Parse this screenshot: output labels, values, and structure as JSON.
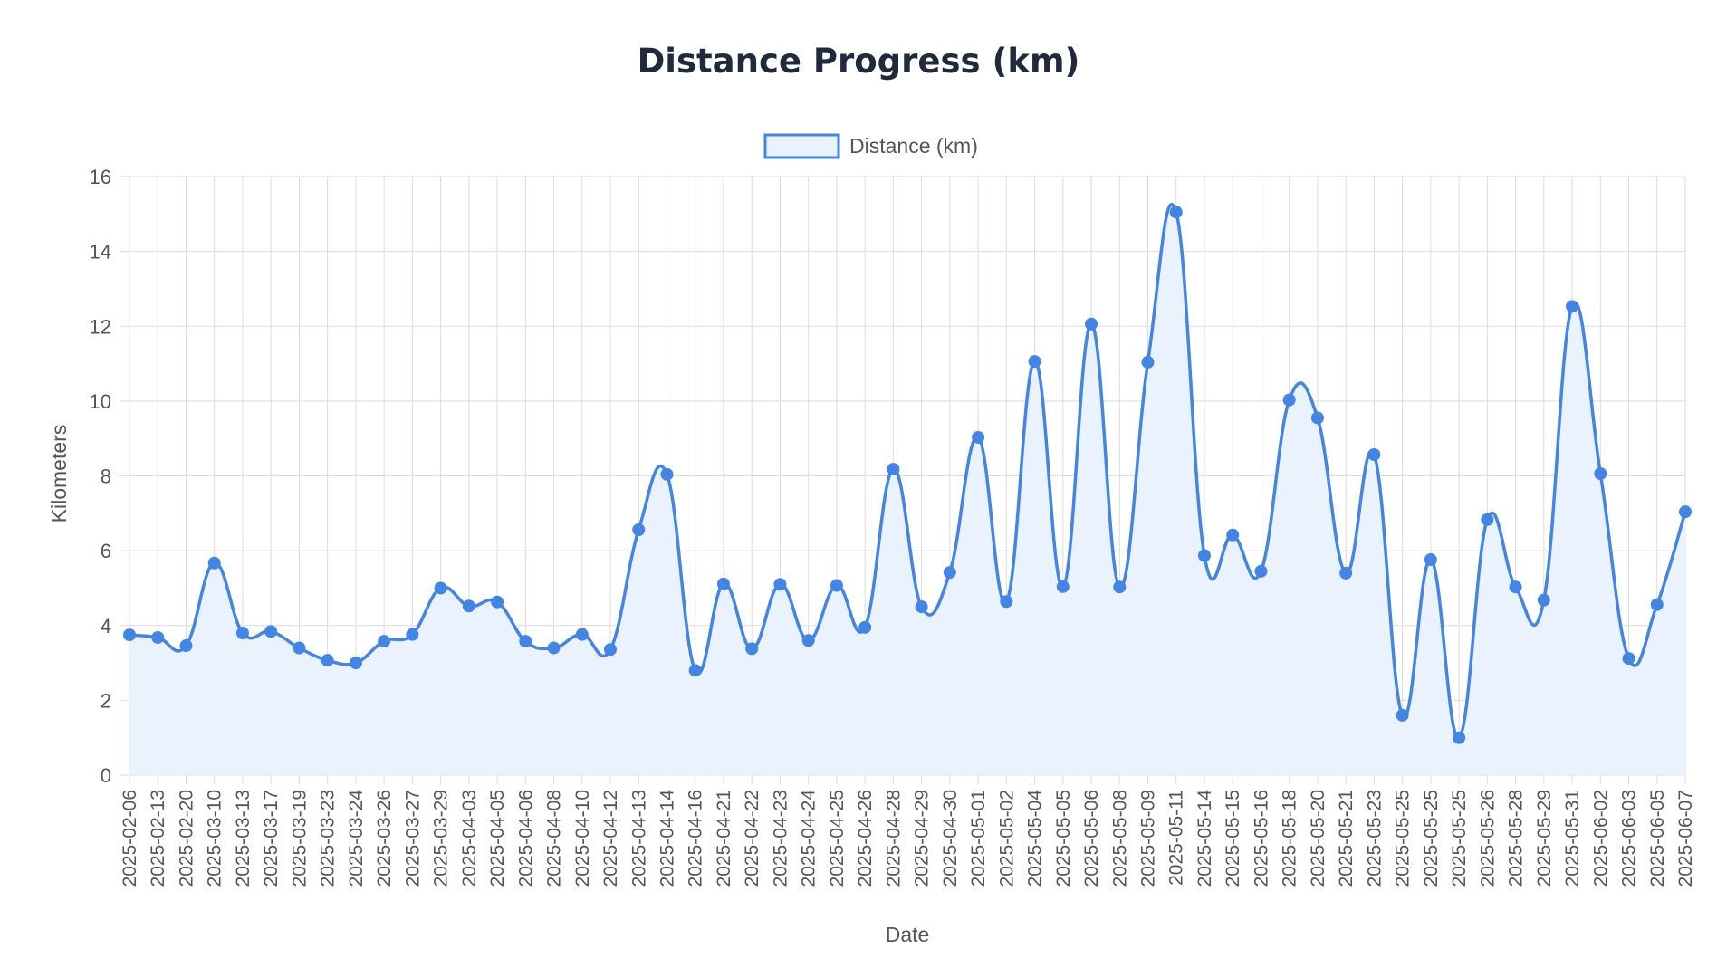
{
  "chart_data": {
    "type": "line",
    "title": "Distance Progress (km)",
    "xlabel": "Date",
    "ylabel": "Kilometers",
    "ylim": [
      0,
      16
    ],
    "ystep": 2,
    "grid": true,
    "legend_position": "top-center",
    "fill_area": true,
    "colors": {
      "line": "#4285e4",
      "fill": "#eaf2fd",
      "grid": "#dcdcdc",
      "title": "#1f2a3d",
      "text": "#555555"
    },
    "categories": [
      "2025-02-06",
      "2025-02-13",
      "2025-02-20",
      "2025-03-10",
      "2025-03-13",
      "2025-03-17",
      "2025-03-19",
      "2025-03-23",
      "2025-03-24",
      "2025-03-26",
      "2025-03-27",
      "2025-03-29",
      "2025-04-03",
      "2025-04-05",
      "2025-04-06",
      "2025-04-08",
      "2025-04-10",
      "2025-04-12",
      "2025-04-13",
      "2025-04-14",
      "2025-04-16",
      "2025-04-21",
      "2025-04-22",
      "2025-04-23",
      "2025-04-24",
      "2025-04-25",
      "2025-04-26",
      "2025-04-28",
      "2025-04-29",
      "2025-04-30",
      "2025-05-01",
      "2025-05-02",
      "2025-05-04",
      "2025-05-05",
      "2025-05-06",
      "2025-05-08",
      "2025-05-09",
      "2025-05-11",
      "2025-05-14",
      "2025-05-15",
      "2025-05-16",
      "2025-05-18",
      "2025-05-20",
      "2025-05-21",
      "2025-05-23",
      "2025-05-25",
      "2025-05-25",
      "2025-05-25",
      "2025-05-26",
      "2025-05-28",
      "2025-05-29",
      "2025-05-31",
      "2025-06-02",
      "2025-06-03",
      "2025-06-05",
      "2025-06-07"
    ],
    "series": [
      {
        "name": "Distance (km)",
        "values": [
          3.75,
          3.68,
          3.46,
          5.67,
          3.8,
          3.84,
          3.4,
          3.07,
          3.0,
          3.58,
          3.76,
          5.0,
          4.52,
          4.63,
          3.58,
          3.4,
          3.76,
          3.36,
          6.56,
          8.04,
          2.8,
          5.11,
          3.38,
          5.1,
          3.6,
          5.07,
          3.95,
          8.18,
          4.5,
          5.42,
          9.03,
          4.64,
          11.06,
          5.04,
          12.06,
          5.03,
          11.04,
          15.05,
          5.87,
          6.42,
          5.45,
          10.03,
          9.55,
          5.4,
          8.57,
          1.6,
          5.76,
          1.0,
          6.83,
          5.03,
          4.68,
          12.53,
          8.06,
          3.12,
          4.56,
          7.04
        ]
      }
    ]
  }
}
